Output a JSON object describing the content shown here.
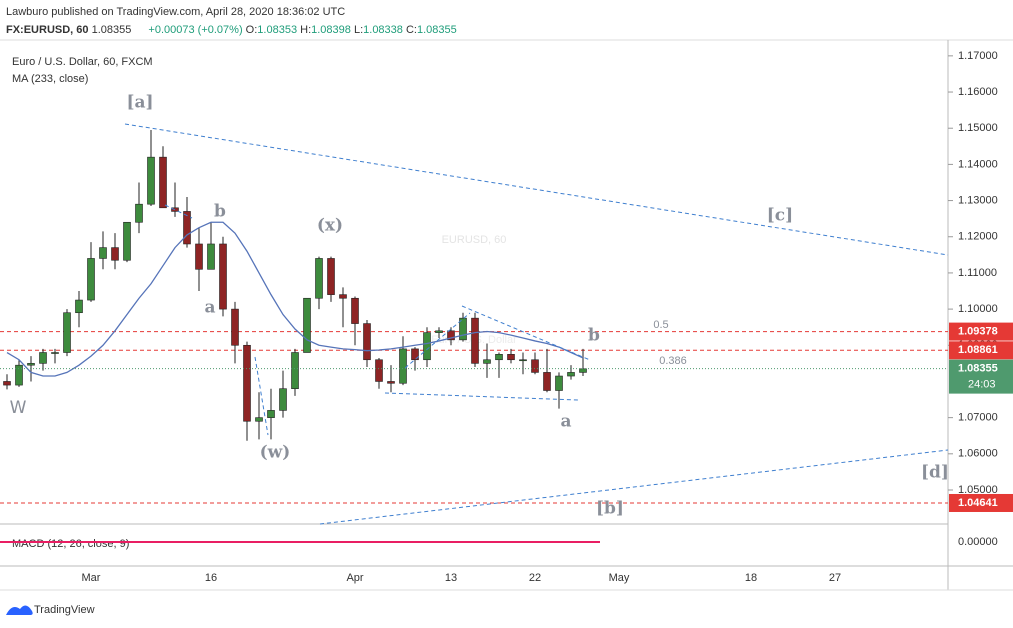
{
  "header": {
    "publisher": "Lawburo published on TradingView.com, April 28, 2020 18:36:02 UTC",
    "symbol": "FX:EURUSD, 60",
    "last": "1.08355",
    "change": "+0.00073 (+0.07%)",
    "o_label": "O:",
    "o": "1.08353",
    "h_label": "H:",
    "h": "1.08398",
    "l_label": "L:",
    "l": "1.08338",
    "c_label": "C:",
    "c": "1.08355"
  },
  "chart_data": {
    "type": "candlestick",
    "title": "Euro / U.S. Dollar, 60, FXCM",
    "watermark": "EURUSD, 60",
    "watermark_sub": "Euro / U.S. Dollar",
    "up_color": "#3d8b3d",
    "down_color": "#8e2424",
    "categories": [
      null,
      null,
      null,
      null,
      null,
      null,
      null,
      "Mar",
      null,
      null,
      null,
      null,
      null,
      null,
      null,
      null,
      null,
      "16",
      null,
      null,
      null,
      null,
      null,
      null,
      null,
      null,
      null,
      null,
      null,
      "Apr",
      null,
      null,
      null,
      null,
      null,
      null,
      null,
      "13",
      null,
      null,
      null,
      null,
      null,
      null,
      "22",
      null,
      null,
      null,
      null,
      null,
      null,
      "May",
      null,
      null,
      null,
      null,
      null,
      null,
      null,
      null,
      null,
      null,
      "18",
      null,
      null,
      null,
      null,
      null,
      null,
      "27",
      null,
      null,
      null,
      null,
      null,
      null,
      null,
      null,
      null
    ],
    "open": [
      1.08,
      1.079,
      1.0845,
      1.085,
      1.088,
      1.088,
      1.099,
      1.1025,
      1.114,
      1.117,
      1.1135,
      1.124,
      1.129,
      1.142,
      1.128,
      1.127,
      1.118,
      1.111,
      1.118,
      1.1,
      1.09,
      1.069,
      1.07,
      1.072,
      1.078,
      1.088,
      1.103,
      1.114,
      1.104,
      1.103,
      1.096,
      1.086,
      1.08,
      1.0795,
      1.089,
      1.086,
      1.0935,
      1.094,
      1.0915,
      1.0975,
      1.085,
      1.086,
      1.0875,
      1.086,
      1.086,
      1.0825,
      1.0775,
      1.0815,
      1.0825,
      null,
      null,
      null,
      null,
      null,
      null,
      null,
      null,
      null,
      null,
      null,
      null,
      null,
      null,
      null,
      null,
      null,
      null,
      null,
      null,
      null,
      null,
      null,
      null,
      null,
      null,
      null,
      null,
      null,
      null
    ],
    "high": [
      1.082,
      1.086,
      1.087,
      1.089,
      1.089,
      1.1,
      1.105,
      1.1185,
      1.1215,
      1.121,
      1.124,
      1.135,
      1.1495,
      1.145,
      1.135,
      1.131,
      1.1225,
      1.124,
      1.12,
      1.102,
      1.091,
      1.077,
      1.078,
      1.083,
      1.089,
      1.103,
      1.1145,
      1.1145,
      1.106,
      1.1035,
      1.097,
      1.0865,
      1.0845,
      1.0925,
      1.0895,
      1.095,
      1.095,
      1.095,
      1.099,
      1.099,
      1.0905,
      1.088,
      1.089,
      1.088,
      1.088,
      1.089,
      1.0825,
      1.0845,
      1.089,
      null,
      null,
      null,
      null,
      null,
      null,
      null,
      null,
      null,
      null,
      null,
      null,
      null,
      null,
      null,
      null,
      null,
      null,
      null,
      null,
      null,
      null,
      null,
      null,
      null,
      null,
      null,
      null,
      null,
      null
    ],
    "low": [
      1.0778,
      1.0785,
      1.08,
      1.083,
      1.085,
      1.087,
      1.095,
      1.102,
      1.111,
      1.111,
      1.113,
      1.121,
      1.1285,
      1.128,
      1.1255,
      1.117,
      1.105,
      1.111,
      1.098,
      1.085,
      1.0636,
      1.064,
      1.064,
      1.07,
      1.076,
      1.088,
      1.1,
      1.102,
      1.095,
      1.09,
      1.084,
      1.078,
      1.077,
      1.079,
      1.083,
      1.084,
      1.092,
      1.09,
      1.091,
      1.084,
      1.081,
      1.081,
      1.085,
      1.082,
      1.082,
      1.077,
      1.0725,
      1.0805,
      1.0815,
      null,
      null,
      null,
      null,
      null,
      null,
      null,
      null,
      null,
      null,
      null,
      null,
      null,
      null,
      null,
      null,
      null,
      null,
      null,
      null,
      null,
      null,
      null,
      null,
      null,
      null,
      null,
      null,
      null,
      null
    ],
    "close": [
      1.079,
      1.0845,
      1.085,
      1.088,
      1.088,
      1.099,
      1.1025,
      1.114,
      1.117,
      1.1135,
      1.124,
      1.129,
      1.142,
      1.128,
      1.127,
      1.118,
      1.111,
      1.118,
      1.1,
      1.09,
      1.069,
      1.07,
      1.072,
      1.078,
      1.088,
      1.103,
      1.114,
      1.104,
      1.103,
      1.096,
      1.086,
      1.08,
      1.0795,
      1.089,
      1.086,
      1.0935,
      1.094,
      1.0915,
      1.0975,
      1.085,
      1.086,
      1.0875,
      1.086,
      1.086,
      1.0825,
      1.0775,
      1.0815,
      1.0825,
      1.0835,
      null,
      null,
      null,
      null,
      null,
      null,
      null,
      null,
      null,
      null,
      null,
      null,
      null,
      null,
      null,
      null,
      null,
      null,
      null,
      null,
      null,
      null,
      null,
      null,
      null,
      null,
      null,
      null,
      null,
      null
    ],
    "ma": {
      "name": "MA (233, close)",
      "color": "#5674b9",
      "values": [
        1.088,
        1.086,
        1.0825,
        1.0815,
        1.0815,
        1.0825,
        1.0845,
        1.087,
        1.09,
        1.094,
        1.0985,
        1.103,
        1.107,
        1.112,
        1.117,
        1.1205,
        1.1225,
        1.124,
        1.124,
        1.121,
        1.116,
        1.11,
        1.104,
        1.0985,
        1.0945,
        1.0915,
        1.09,
        1.0895,
        1.089,
        1.0888,
        1.0885,
        1.0887,
        1.089,
        1.0895,
        1.09,
        1.0905,
        1.0912,
        1.092,
        1.0928,
        1.0935,
        1.0938,
        1.0935,
        1.0928,
        1.092,
        1.0912,
        1.0905,
        1.0895,
        1.088,
        1.0865,
        null,
        null,
        null,
        null,
        null,
        null,
        null,
        null,
        null,
        null,
        null,
        null,
        null,
        null,
        null,
        null,
        null,
        null,
        null,
        null,
        null,
        null,
        null,
        null,
        null,
        null,
        null,
        null,
        null,
        null
      ]
    },
    "ylim": [
      1.0406,
      1.173
    ],
    "yticks": [
      {
        "value": 1.17,
        "label": "1.17000"
      },
      {
        "value": 1.16,
        "label": "1.16000"
      },
      {
        "value": 1.15,
        "label": "1.15000"
      },
      {
        "value": 1.14,
        "label": "1.14000"
      },
      {
        "value": 1.13,
        "label": "1.13000"
      },
      {
        "value": 1.12,
        "label": "1.12000"
      },
      {
        "value": 1.11,
        "label": "1.11000"
      },
      {
        "value": 1.1,
        "label": "1.10000"
      },
      {
        "value": 1.09,
        "label": "1.09000"
      },
      {
        "value": 1.07,
        "label": "1.07000"
      },
      {
        "value": 1.06,
        "label": "1.06000"
      },
      {
        "value": 1.05,
        "label": "1.05000"
      }
    ],
    "price_lines": [
      {
        "value": 1.09378,
        "color": "#e53935"
      },
      {
        "value": 1.08861,
        "color": "#e53935"
      },
      {
        "value": 1.04641,
        "color": "#e53935"
      }
    ],
    "last_price": {
      "value": 1.08355,
      "countdown": "24:03",
      "color": "#4f9a6e"
    },
    "annotations": [
      "[a]",
      "b",
      "a",
      "(x)",
      "(w)",
      "W",
      "b",
      "a",
      "[c]",
      "[d]",
      "[b]",
      "0.5",
      "0.386"
    ],
    "macd": {
      "name": "MACD (12, 26, close, 9)",
      "yticks": [
        {
          "value": 0,
          "label": "0.00000"
        }
      ]
    }
  },
  "footer": {
    "brand": "TradingView"
  }
}
